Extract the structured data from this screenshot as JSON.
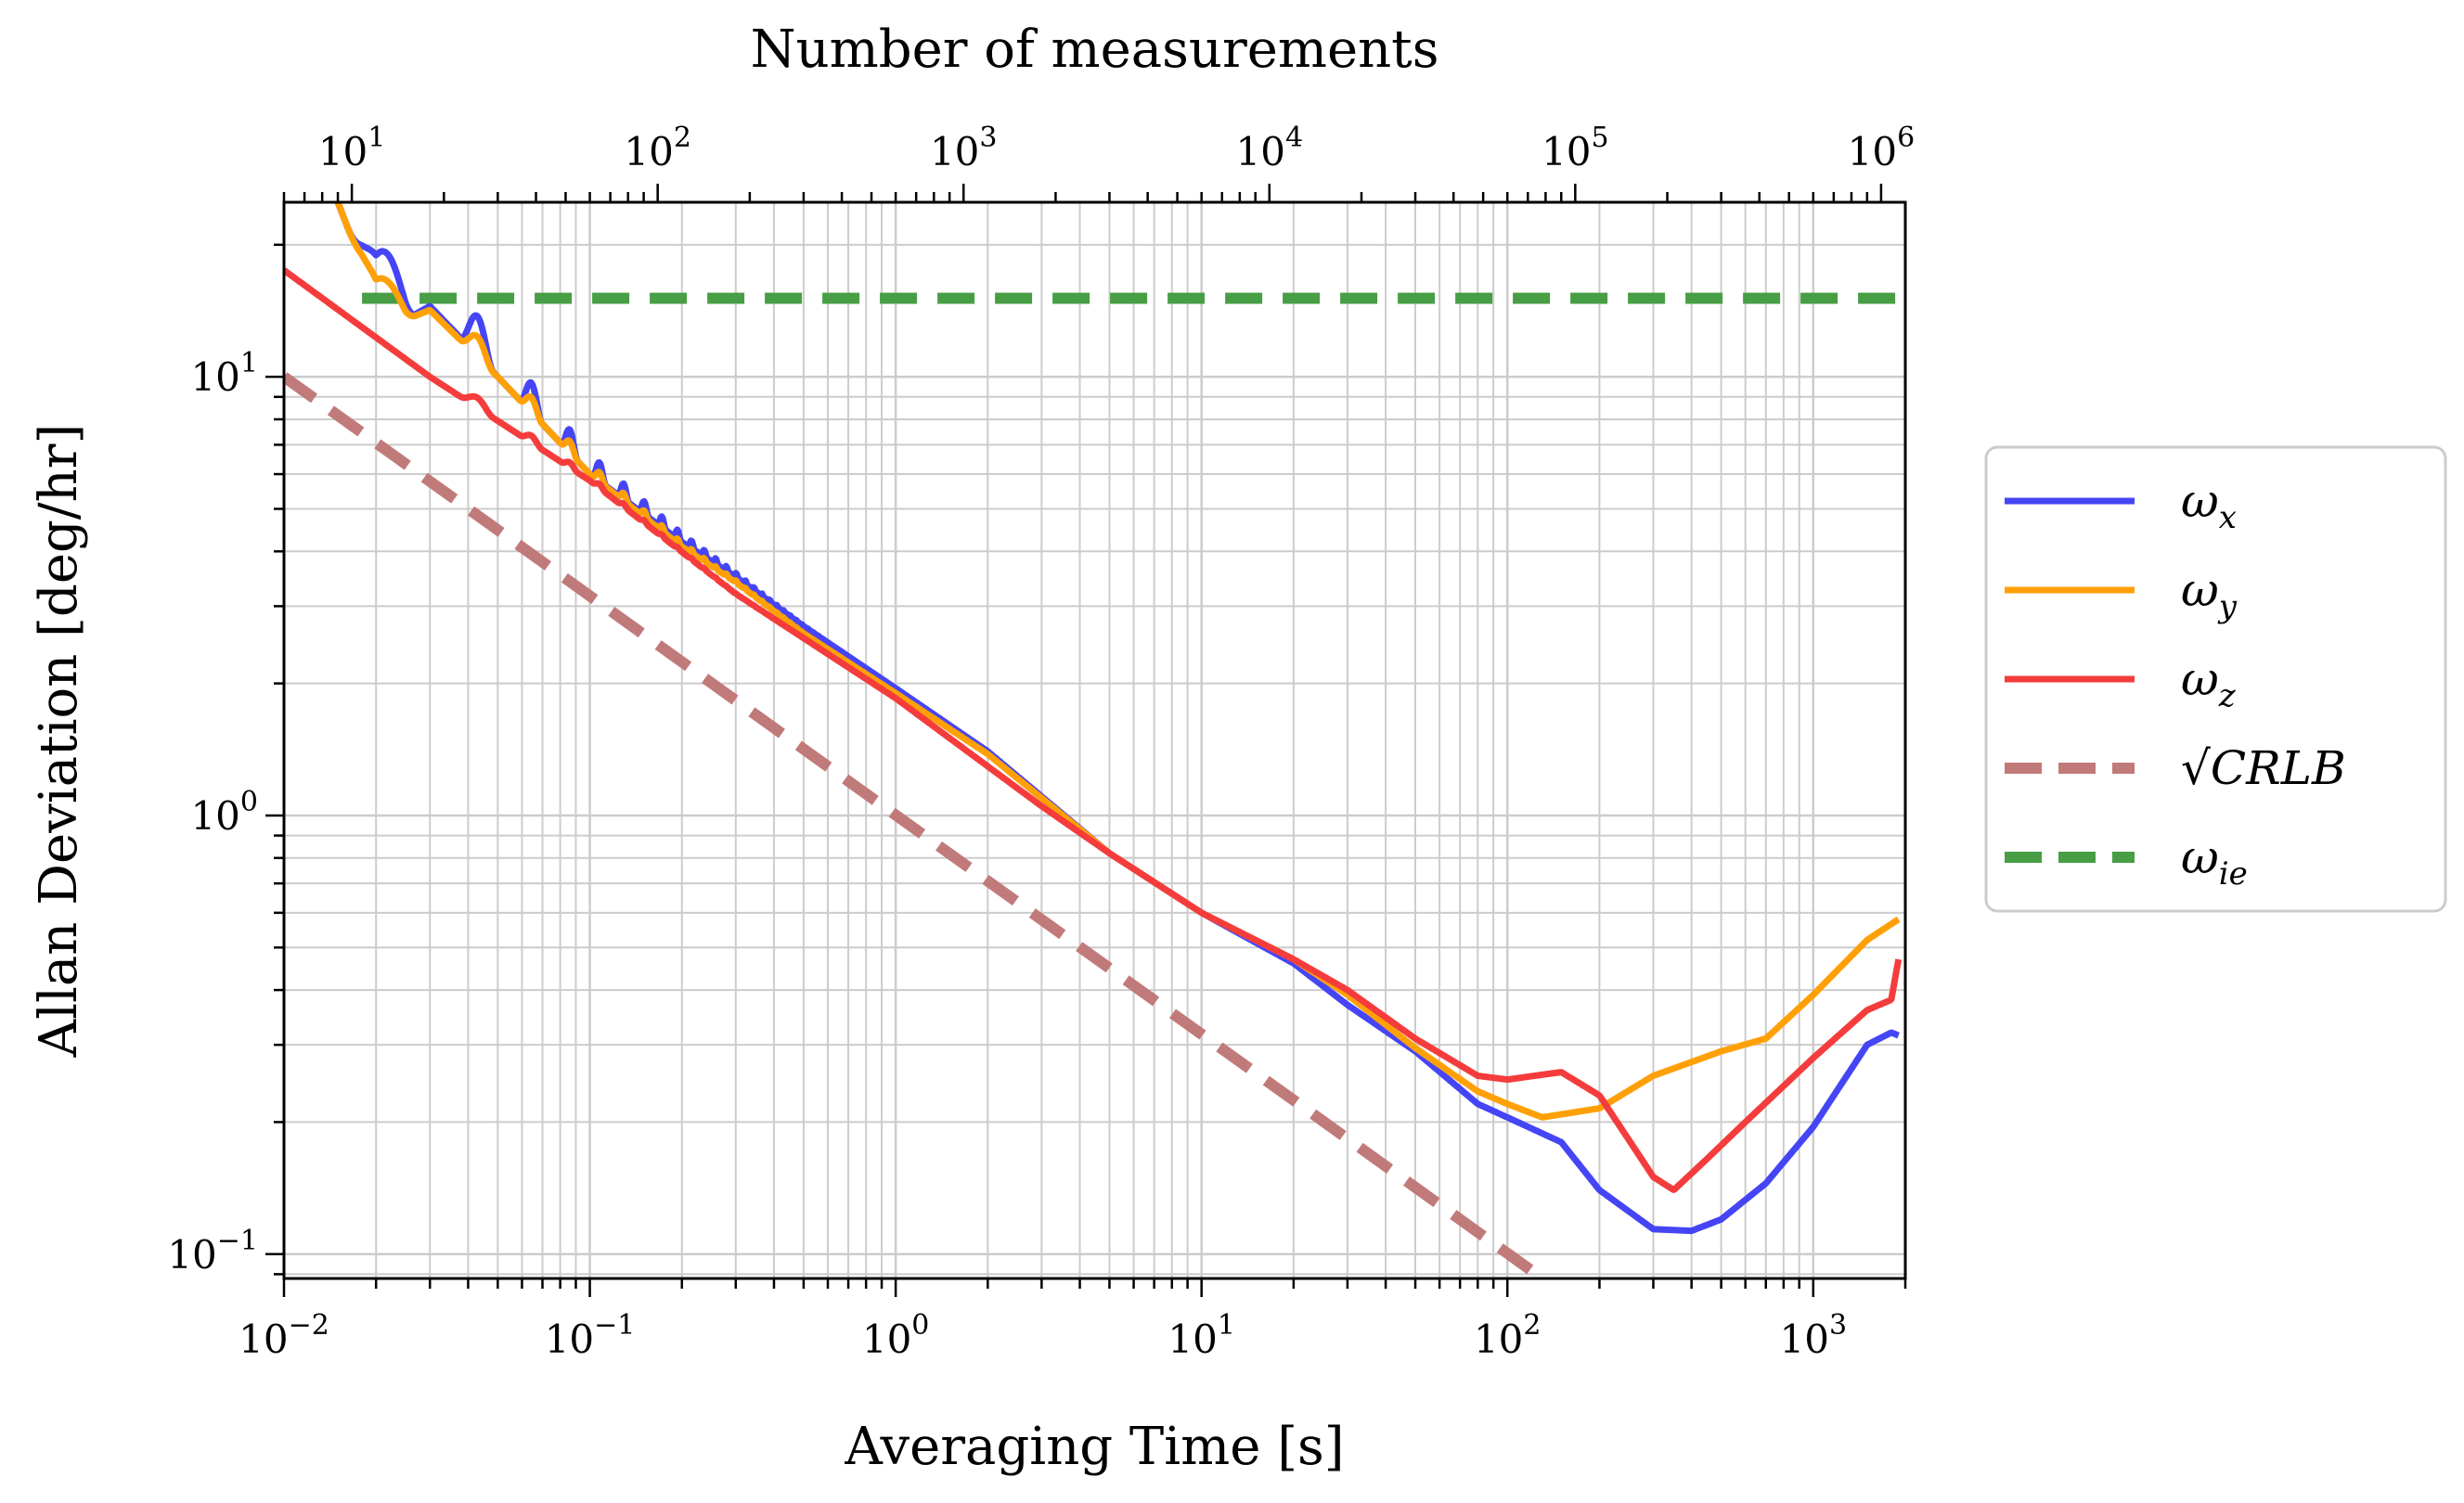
{
  "chart_data": {
    "type": "line",
    "xlabel": "Averaging Time [s]",
    "ylabel": "Allan Deviation [deg/hr]",
    "top_xlabel": "Number of measurements",
    "xscale": "log",
    "yscale": "log",
    "xlim": [
      0.01,
      2000
    ],
    "ylim": [
      0.088,
      25
    ],
    "top_xlim": [
      6,
      1200000
    ],
    "grid": true,
    "legend_position": "outside-right",
    "x_ticks": [
      {
        "value": 0.01,
        "base": "10",
        "exp": "−2"
      },
      {
        "value": 0.1,
        "base": "10",
        "exp": "−1"
      },
      {
        "value": 1,
        "base": "10",
        "exp": "0"
      },
      {
        "value": 10,
        "base": "10",
        "exp": "1"
      },
      {
        "value": 100,
        "base": "10",
        "exp": "2"
      },
      {
        "value": 1000,
        "base": "10",
        "exp": "3"
      }
    ],
    "y_ticks": [
      {
        "value": 0.1,
        "base": "10",
        "exp": "−1"
      },
      {
        "value": 1,
        "base": "10",
        "exp": "0"
      },
      {
        "value": 10,
        "base": "10",
        "exp": "1"
      }
    ],
    "top_ticks": [
      {
        "value": 10,
        "base": "10",
        "exp": "1"
      },
      {
        "value": 100,
        "base": "10",
        "exp": "2"
      },
      {
        "value": 1000,
        "base": "10",
        "exp": "3"
      },
      {
        "value": 10000,
        "base": "10",
        "exp": "4"
      },
      {
        "value": 100000,
        "base": "10",
        "exp": "5"
      },
      {
        "value": 1000000,
        "base": "10",
        "exp": "6"
      }
    ],
    "series": [
      {
        "name": "ω_x",
        "label_main": "ω",
        "label_sub": "x",
        "color": "#4545f5",
        "dash": "solid",
        "width": 7,
        "oscillation": {
          "start": 0.014,
          "end": 0.7,
          "amp": 0.45
        },
        "points": [
          [
            0.015,
            25
          ],
          [
            0.018,
            18
          ],
          [
            0.02,
            14.5
          ],
          [
            0.025,
            13.5
          ],
          [
            0.03,
            14.5
          ],
          [
            0.05,
            10
          ],
          [
            0.1,
            6
          ],
          [
            0.2,
            4.2
          ],
          [
            0.3,
            3.5
          ],
          [
            0.5,
            2.7
          ],
          [
            1,
            1.95
          ],
          [
            2,
            1.4
          ],
          [
            5,
            0.82
          ],
          [
            10,
            0.6
          ],
          [
            20,
            0.46
          ],
          [
            30,
            0.37
          ],
          [
            50,
            0.29
          ],
          [
            80,
            0.22
          ],
          [
            100,
            0.205
          ],
          [
            150,
            0.18
          ],
          [
            200,
            0.14
          ],
          [
            300,
            0.114
          ],
          [
            400,
            0.113
          ],
          [
            500,
            0.12
          ],
          [
            700,
            0.145
          ],
          [
            1000,
            0.195
          ],
          [
            1500,
            0.3
          ],
          [
            1800,
            0.32
          ],
          [
            1900,
            0.315
          ]
        ]
      },
      {
        "name": "ω_y",
        "label_main": "ω",
        "label_sub": "y",
        "color": "#ffa007",
        "dash": "solid",
        "width": 7,
        "oscillation": {
          "start": 0.014,
          "end": 0.7,
          "amp": 0.22
        },
        "points": [
          [
            0.015,
            25
          ],
          [
            0.018,
            18
          ],
          [
            0.02,
            14.5
          ],
          [
            0.025,
            13.5
          ],
          [
            0.03,
            14.2
          ],
          [
            0.05,
            10
          ],
          [
            0.1,
            6
          ],
          [
            0.2,
            4.1
          ],
          [
            0.3,
            3.4
          ],
          [
            0.5,
            2.6
          ],
          [
            1,
            1.9
          ],
          [
            2,
            1.38
          ],
          [
            5,
            0.82
          ],
          [
            10,
            0.6
          ],
          [
            20,
            0.47
          ],
          [
            30,
            0.39
          ],
          [
            50,
            0.295
          ],
          [
            80,
            0.235
          ],
          [
            100,
            0.22
          ],
          [
            130,
            0.205
          ],
          [
            200,
            0.215
          ],
          [
            300,
            0.255
          ],
          [
            500,
            0.29
          ],
          [
            700,
            0.31
          ],
          [
            1000,
            0.39
          ],
          [
            1500,
            0.52
          ],
          [
            1900,
            0.58
          ]
        ]
      },
      {
        "name": "ω_z",
        "label_main": "ω",
        "label_sub": "z",
        "color": "#f53c3c",
        "dash": "solid",
        "width": 7,
        "oscillation": {
          "start": 0.03,
          "end": 0.5,
          "amp": 0.07
        },
        "points": [
          [
            0.01,
            17.5
          ],
          [
            0.03,
            10
          ],
          [
            0.1,
            5.8
          ],
          [
            0.3,
            3.2
          ],
          [
            1,
            1.85
          ],
          [
            3,
            1.05
          ],
          [
            5,
            0.82
          ],
          [
            10,
            0.6
          ],
          [
            20,
            0.47
          ],
          [
            30,
            0.4
          ],
          [
            50,
            0.31
          ],
          [
            80,
            0.255
          ],
          [
            100,
            0.25
          ],
          [
            150,
            0.26
          ],
          [
            200,
            0.23
          ],
          [
            300,
            0.15
          ],
          [
            350,
            0.14
          ],
          [
            450,
            0.165
          ],
          [
            600,
            0.2
          ],
          [
            1000,
            0.28
          ],
          [
            1500,
            0.36
          ],
          [
            1800,
            0.38
          ],
          [
            1900,
            0.47
          ]
        ]
      },
      {
        "name": "√CRLB",
        "label_main": "√CRLB",
        "label_sub": "",
        "color": "#c17a7a",
        "dash": "long",
        "width": 12,
        "points": [
          [
            0.01,
            10
          ],
          [
            150,
            0.082
          ]
        ]
      },
      {
        "name": "ω_ie",
        "label_main": "ω",
        "label_sub": "ie",
        "color": "#479e45",
        "dash": "long",
        "width": 12,
        "points": [
          [
            0.018,
            15.1
          ],
          [
            1900,
            15.1
          ]
        ]
      }
    ]
  }
}
